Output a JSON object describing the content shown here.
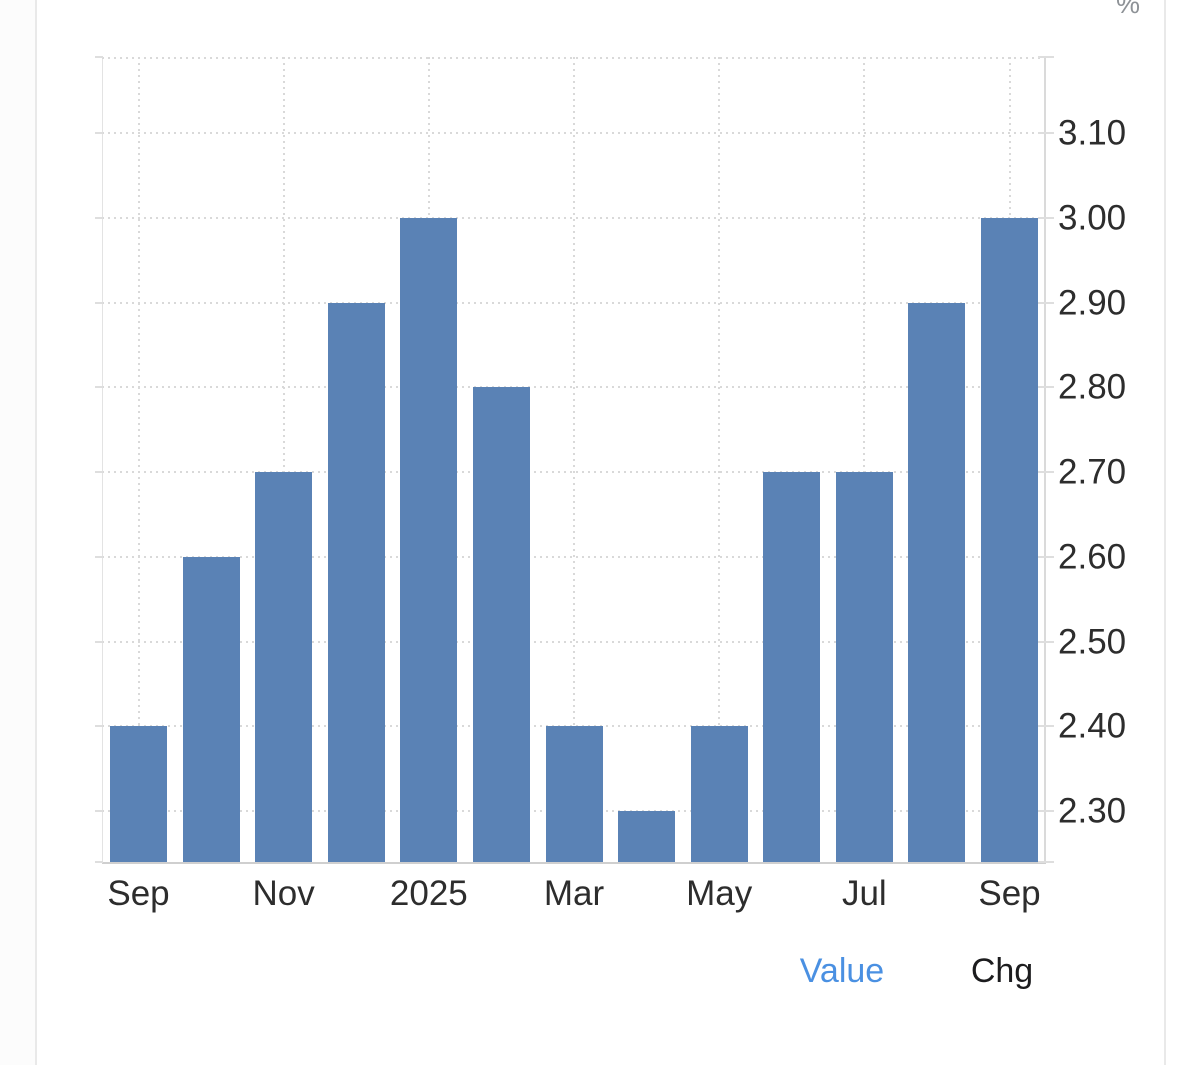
{
  "unit_label": "%",
  "legend": {
    "value_label": "Value",
    "chg_label": "Chg"
  },
  "colors": {
    "bar": "#5a82b5",
    "legend_active": "#4a90e2",
    "legend_inactive": "#1c1c1e",
    "axis_text": "#2d2d2d",
    "unit_text": "#8e9297",
    "grid": "#d9d9d9",
    "card_border": "#e9e9e9"
  },
  "chart_data": {
    "type": "bar",
    "title": "",
    "unit": "%",
    "categories": [
      "Sep 2024",
      "Oct 2024",
      "Nov 2024",
      "Dec 2024",
      "Jan 2025",
      "Feb 2025",
      "Mar 2025",
      "Apr 2025",
      "May 2025",
      "Jun 2025",
      "Jul 2025",
      "Aug 2025",
      "Sep 2025"
    ],
    "values": [
      2.4,
      2.6,
      2.7,
      2.9,
      3.0,
      2.8,
      2.4,
      2.3,
      2.4,
      2.7,
      2.7,
      2.9,
      3.0
    ],
    "x_tick_labels": [
      "Sep",
      "Nov",
      "2025",
      "Mar",
      "May",
      "Jul",
      "Sep"
    ],
    "x_tick_indices": [
      0,
      2,
      4,
      6,
      8,
      10,
      12
    ],
    "y_ticks": [
      3.1,
      3.0,
      2.9,
      2.8,
      2.7,
      2.6,
      2.5,
      2.4,
      2.3
    ],
    "y_tick_labels": [
      "3.10",
      "3.00",
      "2.90",
      "2.80",
      "2.70",
      "2.60",
      "2.50",
      "2.40",
      "2.30"
    ],
    "ylabel": "%",
    "ylim": [
      2.24,
      3.19
    ],
    "grid": true,
    "gridline_style": "dotted",
    "legend": [
      "Value",
      "Chg"
    ],
    "legend_position": "bottom-right"
  }
}
